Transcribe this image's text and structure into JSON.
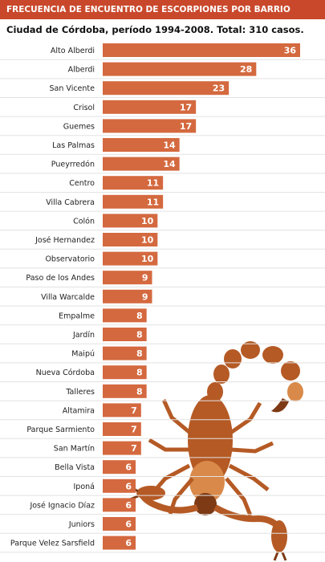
{
  "header": {
    "title": "FRECUENCIA DE ENCUENTRO DE ESCORPIONES POR BARRIO"
  },
  "subtitle": "Ciudad de Córdoba, período 1994-2008. Total: 310 casos.",
  "colors": {
    "header_bg": "#c9482c",
    "bar": "#d4693f",
    "separator": "#e2e2e2"
  },
  "illustration": "scorpion-illustration",
  "chart_data": {
    "type": "bar",
    "orientation": "horizontal",
    "title": "FRECUENCIA DE ENCUENTRO DE ESCORPIONES POR BARRIO",
    "subtitle": "Ciudad de Córdoba, período 1994-2008. Total: 310 casos.",
    "xlabel": "",
    "ylabel": "",
    "categories": [
      "Alto Alberdi",
      "Alberdi",
      "San Vicente",
      "Crisol",
      "Guemes",
      "Las Palmas",
      "Pueyrredón",
      "Centro",
      "Villa Cabrera",
      "Colón",
      "José Hernandez",
      "Observatorio",
      "Paso de los Andes",
      "Villa Warcalde",
      "Empalme",
      "Jardín",
      "Maipú",
      "Nueva Córdoba",
      "Talleres",
      "Altamira",
      "Parque Sarmiento",
      "San Martín",
      "Bella Vista",
      "Iponá",
      "José Ignacio Díaz",
      "Juniors",
      "Parque Velez Sarsfield"
    ],
    "values": [
      36,
      28,
      23,
      17,
      17,
      14,
      14,
      11,
      11,
      10,
      10,
      10,
      9,
      9,
      8,
      8,
      8,
      8,
      8,
      7,
      7,
      7,
      6,
      6,
      6,
      6,
      6
    ],
    "xlim": [
      0,
      36
    ],
    "grid": false,
    "data_labels": true
  }
}
